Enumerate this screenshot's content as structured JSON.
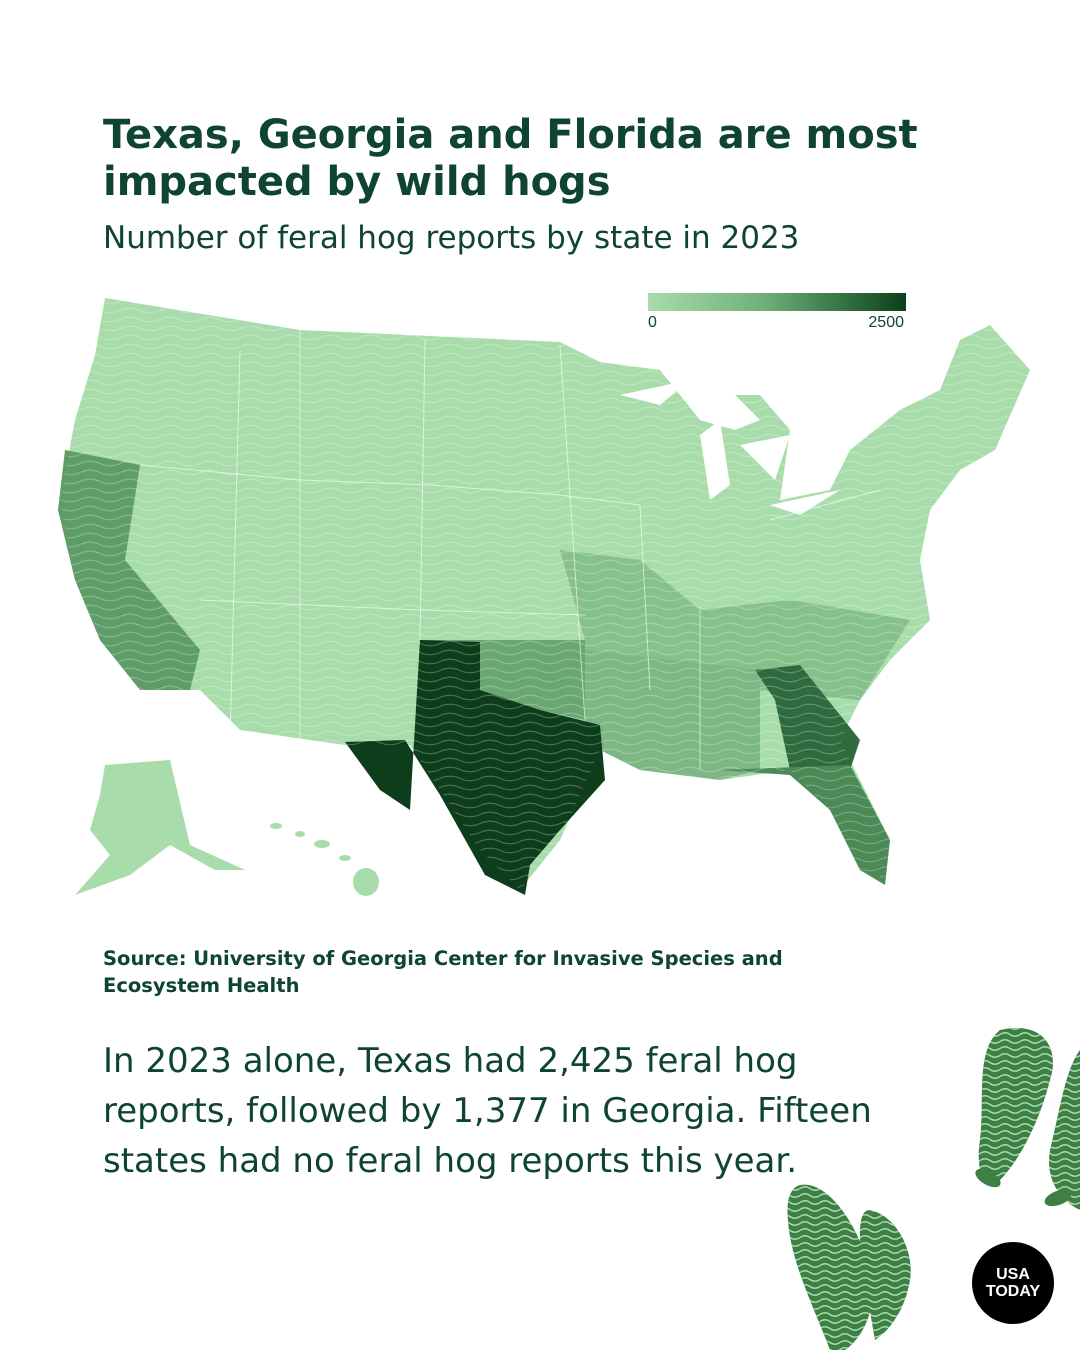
{
  "header": {
    "title": "Texas, Georgia and Florida are most impacted by wild hogs",
    "subtitle": "Number of feral hog reports by state in 2023"
  },
  "legend": {
    "min_label": "0",
    "max_label": "2500",
    "low_color": "#a8dcaa",
    "high_color": "#0e3d1c"
  },
  "map_data": {
    "type": "choropleth",
    "region": "United States",
    "metric": "feral hog reports, 2023",
    "scale": [
      0,
      2500
    ],
    "highlighted_states": [
      {
        "state": "Texas",
        "level": "highest",
        "color": "#0e3d1c"
      },
      {
        "state": "Georgia",
        "level": "high",
        "color": "#2f6b3e"
      },
      {
        "state": "Florida",
        "level": "medium-high",
        "color": "#4b8a57"
      },
      {
        "state": "California",
        "level": "medium",
        "color": "#5f9d68"
      },
      {
        "state": "Oklahoma",
        "level": "medium",
        "color": "#6aa671"
      },
      {
        "state": "Southeast states",
        "level": "low-medium",
        "color": "#86c08a"
      },
      {
        "state": "Other states",
        "level": "low",
        "color": "#a8dcaa"
      }
    ]
  },
  "source": "Source: University of Georgia Center for Invasive Species and Ecosystem Health",
  "body_text": "In 2023 alone, Texas had 2,425 feral hog reports, followed by 1,377 in Georgia. Fifteen states had no feral hog reports this year.",
  "logo": {
    "line1": "USA",
    "line2": "TODAY"
  },
  "colors": {
    "text": "#0f4530",
    "background": "#ffffff",
    "track": "#3e7f45"
  }
}
